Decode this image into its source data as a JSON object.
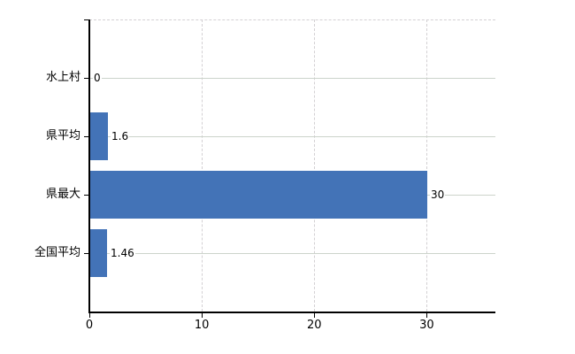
{
  "chart_data": {
    "type": "bar",
    "orientation": "horizontal",
    "title": "",
    "xlabel": "",
    "ylabel": "",
    "categories": [
      "水上村",
      "県平均",
      "県最大",
      "全国平均"
    ],
    "values": [
      0,
      1.6,
      30,
      1.46
    ],
    "value_labels": [
      "0",
      "1.6",
      "30",
      "1.46"
    ],
    "x_ticks": [
      0,
      10,
      20,
      30
    ],
    "x_tick_labels": [
      "0",
      "10",
      "20",
      "30"
    ],
    "xlim": [
      0,
      36.1
    ],
    "grid": true,
    "legend": false,
    "colors": {
      "bar": "#4373b7",
      "axis": "#000000",
      "gridline_horizontal": "#ccd3cb",
      "gridline_vertical": "#d3d0d3",
      "text": "#000000",
      "background": "#ffffff"
    }
  }
}
